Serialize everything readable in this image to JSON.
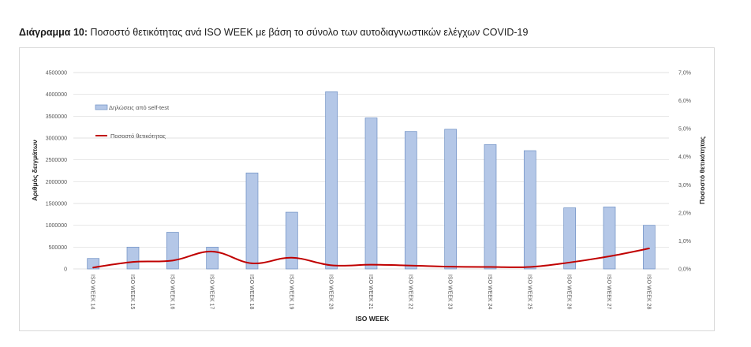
{
  "caption": {
    "label": "Διάγραμμα 10:",
    "text": "Ποσοστό θετικότητας ανά ISO WEEK με βάση το σύνολο των αυτοδιαγνωστικών ελέγχων COVID-19"
  },
  "colors": {
    "bar_fill": "#b4c7e7",
    "bar_stroke": "#6d8fc4",
    "line": "#c00000",
    "grid": "#d9d9d9"
  },
  "chart_data": {
    "type": "bar",
    "categories": [
      "ISO WEEK 14",
      "ISO WEEK 15",
      "ISO WEEK 16",
      "ISO WEEK 17",
      "ISO WEEK 18",
      "ISO WEEK 19",
      "ISO WEEK 20",
      "ISO WEEK 21",
      "ISO WEEK 22",
      "ISO WEEK 23",
      "ISO WEEK 24",
      "ISO WEEK 25",
      "ISO WEEK 26",
      "ISO WEEK 27",
      "ISO WEEK 28"
    ],
    "series": [
      {
        "name": "Δηλώσεις από self-test",
        "type": "bar",
        "axis": "left",
        "values": [
          240000,
          500000,
          840000,
          500000,
          2200000,
          1300000,
          4060000,
          3460000,
          3150000,
          3200000,
          2850000,
          2710000,
          1400000,
          1420000,
          1000000
        ]
      },
      {
        "name": "Ποσοστό θετικότητας",
        "type": "line",
        "axis": "right",
        "values": [
          0.05,
          0.25,
          0.3,
          0.62,
          0.2,
          0.4,
          0.13,
          0.15,
          0.12,
          0.08,
          0.07,
          0.07,
          0.23,
          0.45,
          0.73
        ]
      }
    ],
    "xlabel": "ISO WEEK",
    "ylabel": "Αριθμός δειγμάτων",
    "y2label": "Ποσοστό θετικότητας",
    "ylim": [
      0,
      4500000
    ],
    "y2lim": [
      0,
      7
    ],
    "yticks": [
      "0",
      "500000",
      "1000000",
      "1500000",
      "2000000",
      "2500000",
      "3000000",
      "3500000",
      "4000000",
      "4500000"
    ],
    "y2ticks": [
      "0,0%",
      "1,0%",
      "2,0%",
      "3,0%",
      "4,0%",
      "5,0%",
      "6,0%",
      "7,0%"
    ],
    "legend_position": "top-left",
    "grid": true
  }
}
